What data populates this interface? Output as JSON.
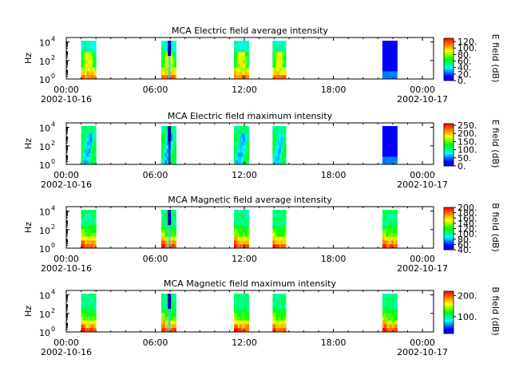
{
  "figure": {
    "background": "#ffffff",
    "x_time_range": [
      "2002-10-16 00:00",
      "2002-10-17 00:00"
    ]
  },
  "chart_data": [
    {
      "type": "heatmap",
      "title": "MCA  Electric field average intensity",
      "ylabel": "Hz",
      "y_scale": "log",
      "ylim_hz": [
        1,
        30000
      ],
      "y_tick_labels": [
        {
          "base": "10",
          "exp": "0"
        },
        {
          "base": "10",
          "exp": "2"
        },
        {
          "base": "10",
          "exp": "4"
        }
      ],
      "x_tick_labels": [
        "00:00",
        "06:00",
        "12:00",
        "18:00",
        "00:00"
      ],
      "x_date_labels": [
        "2002-10-16",
        "2002-10-17"
      ],
      "colorbar": {
        "label": "E field (dB)",
        "range": [
          0,
          130
        ],
        "tick_values": [
          0,
          20,
          40,
          60,
          80,
          100,
          120
        ],
        "tick_labels": [
          "0.",
          "20.",
          "40.",
          "60.",
          "80.",
          "100.",
          "120."
        ]
      },
      "segments": [
        {
          "start_hour": 1.0,
          "end_hour": 2.0,
          "pattern": "avg-e",
          "intensity_db": 70
        },
        {
          "start_hour": 6.4,
          "end_hour": 7.4,
          "pattern": "avg-e",
          "intensity_db": 60,
          "dark_band_hour": 6.95
        },
        {
          "start_hour": 11.3,
          "end_hour": 12.3,
          "pattern": "avg-e",
          "intensity_db": 70
        },
        {
          "start_hour": 13.9,
          "end_hour": 14.8,
          "pattern": "avg-e",
          "intensity_db": 70
        },
        {
          "start_hour": 21.3,
          "end_hour": 22.3,
          "pattern": "flat",
          "intensity_db": 10
        }
      ]
    },
    {
      "type": "heatmap",
      "title": "MCA  Electric field maximum intensity",
      "ylabel": "Hz",
      "y_scale": "log",
      "ylim_hz": [
        1,
        30000
      ],
      "y_tick_labels": [
        {
          "base": "10",
          "exp": "0"
        },
        {
          "base": "10",
          "exp": "2"
        },
        {
          "base": "10",
          "exp": "4"
        }
      ],
      "x_tick_labels": [
        "00:00",
        "06:00",
        "12:00",
        "18:00",
        "00:00"
      ],
      "x_date_labels": [
        "2002-10-16",
        "2002-10-17"
      ],
      "colorbar": {
        "label": "E field (dB)",
        "range": [
          0,
          260
        ],
        "tick_values": [
          0,
          50,
          100,
          150,
          200,
          250
        ],
        "tick_labels": [
          "0.",
          "50.",
          "100.",
          "150.",
          "200.",
          "250."
        ]
      },
      "segments": [
        {
          "start_hour": 1.0,
          "end_hour": 2.0,
          "pattern": "max-e",
          "intensity_db": 110
        },
        {
          "start_hour": 6.4,
          "end_hour": 7.4,
          "pattern": "max-e",
          "intensity_db": 90,
          "dark_band_hour": 6.95
        },
        {
          "start_hour": 11.3,
          "end_hour": 12.3,
          "pattern": "max-e",
          "intensity_db": 110
        },
        {
          "start_hour": 13.9,
          "end_hour": 14.8,
          "pattern": "max-e",
          "intensity_db": 110
        },
        {
          "start_hour": 21.3,
          "end_hour": 22.3,
          "pattern": "flat",
          "intensity_db": 15
        }
      ]
    },
    {
      "type": "heatmap",
      "title": "MCA  Magnetic field average intensity",
      "ylabel": "Hz",
      "y_scale": "log",
      "ylim_hz": [
        1,
        30000
      ],
      "y_tick_labels": [
        {
          "base": "10",
          "exp": "0"
        },
        {
          "base": "10",
          "exp": "2"
        },
        {
          "base": "10",
          "exp": "4"
        }
      ],
      "x_tick_labels": [
        "00:00",
        "06:00",
        "12:00",
        "18:00",
        "00:00"
      ],
      "x_date_labels": [
        "2002-10-16",
        "2002-10-17"
      ],
      "colorbar": {
        "label": "B field (dB)",
        "range": [
          40,
          200
        ],
        "tick_values": [
          40,
          60,
          80,
          100,
          120,
          140,
          160,
          180,
          200
        ],
        "tick_labels": [
          "40.",
          "60.",
          "80.",
          "100.",
          "120.",
          "140.",
          "160.",
          "180.",
          "200."
        ]
      },
      "segments": [
        {
          "start_hour": 1.0,
          "end_hour": 2.0,
          "pattern": "b",
          "intensity_db": 120
        },
        {
          "start_hour": 6.4,
          "end_hour": 7.4,
          "pattern": "b",
          "intensity_db": 115,
          "dark_band_hour": 6.95
        },
        {
          "start_hour": 11.3,
          "end_hour": 12.3,
          "pattern": "b",
          "intensity_db": 120
        },
        {
          "start_hour": 13.9,
          "end_hour": 14.8,
          "pattern": "b",
          "intensity_db": 120
        },
        {
          "start_hour": 21.3,
          "end_hour": 22.3,
          "pattern": "b",
          "intensity_db": 120
        }
      ]
    },
    {
      "type": "heatmap",
      "title": "MCA  Magnetic field maximum intensity",
      "ylabel": "Hz",
      "y_scale": "log",
      "ylim_hz": [
        1,
        30000
      ],
      "y_tick_labels": [
        {
          "base": "10",
          "exp": "0"
        },
        {
          "base": "10",
          "exp": "2"
        },
        {
          "base": "10",
          "exp": "4"
        }
      ],
      "x_tick_labels": [
        "00:00",
        "06:00",
        "12:00",
        "18:00",
        "00:00"
      ],
      "x_date_labels": [
        "2002-10-16",
        "2002-10-17"
      ],
      "colorbar": {
        "label": "B field (dB)",
        "range": [
          20,
          220
        ],
        "tick_values": [
          100,
          200
        ],
        "tick_labels": [
          "100.",
          "200."
        ]
      },
      "segments": [
        {
          "start_hour": 1.0,
          "end_hour": 2.0,
          "pattern": "b",
          "intensity_db": 120
        },
        {
          "start_hour": 6.4,
          "end_hour": 7.4,
          "pattern": "b",
          "intensity_db": 115,
          "dark_band_hour": 6.95
        },
        {
          "start_hour": 11.3,
          "end_hour": 12.3,
          "pattern": "b",
          "intensity_db": 120
        },
        {
          "start_hour": 13.9,
          "end_hour": 14.8,
          "pattern": "b",
          "intensity_db": 120
        },
        {
          "start_hour": 21.3,
          "end_hour": 22.3,
          "pattern": "b",
          "intensity_db": 120
        }
      ]
    }
  ]
}
